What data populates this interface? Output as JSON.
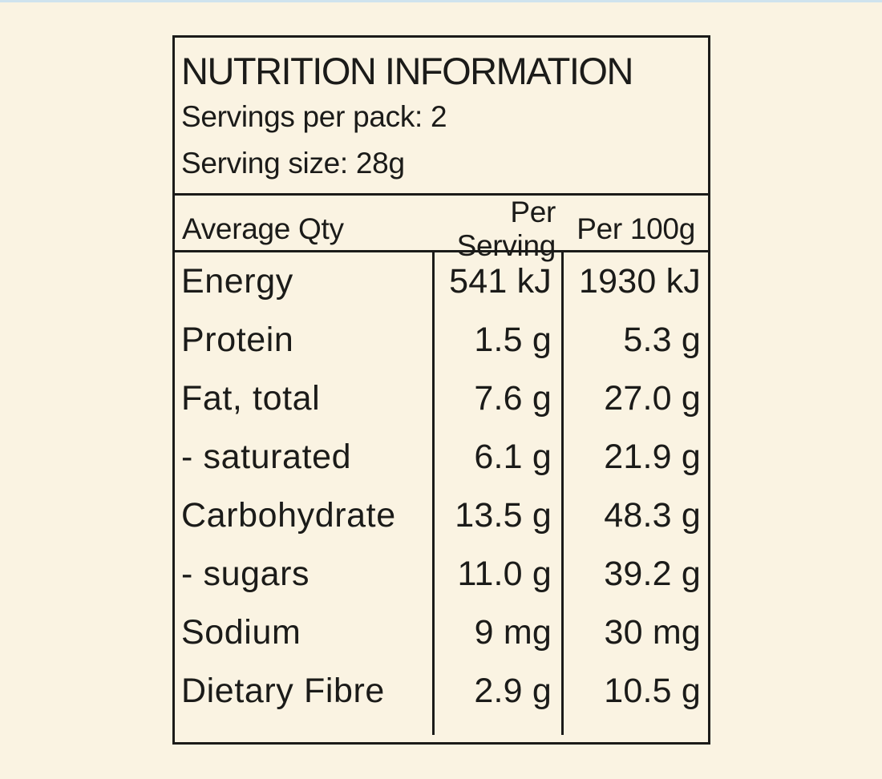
{
  "theme": {
    "background_color": "#faf3e2",
    "text_color": "#1b1b19",
    "border_color": "#1b1b19",
    "top_edge_strip_color": "#cfe3ee"
  },
  "label": {
    "title": "NUTRITION INFORMATION",
    "servings_per_pack": "Servings per pack: 2",
    "serving_size": "Serving size: 28g",
    "columns": {
      "name": "Average Qty",
      "per_serving": "Per Serving",
      "per_100g": "Per 100g"
    },
    "rows": [
      {
        "name": "Energy",
        "per_serving": "541 kJ",
        "per_100g": "1930 kJ"
      },
      {
        "name": "Protein",
        "per_serving": "1.5 g",
        "per_100g": "5.3 g"
      },
      {
        "name": "Fat, total",
        "per_serving": "7.6 g",
        "per_100g": "27.0 g"
      },
      {
        "name": "- saturated",
        "per_serving": "6.1 g",
        "per_100g": "21.9 g"
      },
      {
        "name": "Carbohydrate",
        "per_serving": "13.5 g",
        "per_100g": "48.3 g"
      },
      {
        "name": "- sugars",
        "per_serving": "11.0 g",
        "per_100g": "39.2 g"
      },
      {
        "name": "Sodium",
        "per_serving": "9 mg",
        "per_100g": "30 mg"
      },
      {
        "name": "Dietary Fibre",
        "per_serving": "2.9 g",
        "per_100g": "10.5 g"
      }
    ]
  },
  "chart_data": {
    "type": "table",
    "title": "NUTRITION INFORMATION",
    "columns": [
      "Average Qty",
      "Per Serving",
      "Per 100g"
    ],
    "rows": [
      [
        "Energy",
        "541 kJ",
        "1930 kJ"
      ],
      [
        "Protein",
        "1.5 g",
        "5.3 g"
      ],
      [
        "Fat, total",
        "7.6 g",
        "27.0 g"
      ],
      [
        "- saturated",
        "6.1 g",
        "21.9 g"
      ],
      [
        "Carbohydrate",
        "13.5 g",
        "48.3 g"
      ],
      [
        "- sugars",
        "11.0 g",
        "39.2 g"
      ],
      [
        "Sodium",
        "9 mg",
        "30 mg"
      ],
      [
        "Dietary Fibre",
        "2.9 g",
        "10.5 g"
      ]
    ]
  }
}
